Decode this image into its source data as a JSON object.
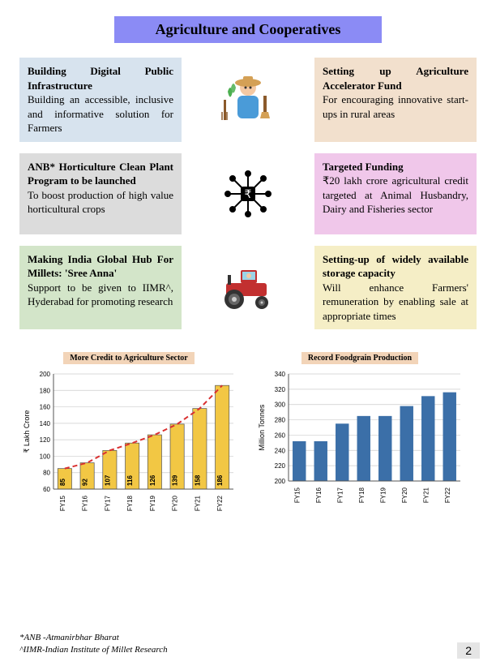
{
  "banner": {
    "text": "Agriculture and Cooperatives",
    "bg": "#8b8bf5"
  },
  "cards": [
    {
      "title": "Building Digital Public Infrastructure",
      "body": "Building an accessible, inclusive and informative solution for Farmers",
      "bg": "#d7e3ee"
    },
    {
      "title": "Setting up Agriculture Accelerator Fund",
      "body": "For encouraging innovative start-ups in rural areas",
      "bg": "#f2e0cd"
    },
    {
      "title": "ANB* Horticulture Clean Plant Program to be launched",
      "body": "To boost production of high value horticultural crops",
      "bg": "#dcdcdc"
    },
    {
      "title": "Targeted Funding",
      "body": "₹20 lakh crore agricultural credit targeted at Animal Husbandry, Dairy and Fisheries sector",
      "bg": "#f0c7ea"
    },
    {
      "title": "Making India Global Hub For Millets: 'Sree Anna'",
      "body": "Support to be given to IIMR^, Hyderabad for promoting research",
      "bg": "#d3e5c9"
    },
    {
      "title": "Setting-up of widely available storage capacity",
      "body": "Will enhance Farmers' remuneration by enabling sale at appropriate times",
      "bg": "#f5eec6"
    }
  ],
  "chart1": {
    "title": "More Credit to Agriculture Sector",
    "type": "bar-with-trend",
    "categories": [
      "FY15",
      "FY16",
      "FY17",
      "FY18",
      "FY19",
      "FY20",
      "FY21",
      "FY22"
    ],
    "values": [
      85,
      92,
      107,
      116,
      126,
      139,
      158,
      186
    ],
    "ylabel": "₹ Lakh Crore",
    "ylim": [
      60,
      200
    ],
    "ytick_step": 20,
    "bar_color": "#f2c744",
    "bar_border": "#555555",
    "trend_color": "#d93030",
    "grid_color": "#cccccc",
    "font_size": 8
  },
  "chart2": {
    "title": "Record Foodgrain Production",
    "type": "bar",
    "categories": [
      "FY15",
      "FY16",
      "FY17",
      "FY18",
      "FY19",
      "FY20",
      "FY21",
      "FY22"
    ],
    "values": [
      252,
      252,
      275,
      285,
      285,
      298,
      311,
      316
    ],
    "ylabel": "Million Tonnes",
    "ylim": [
      200,
      340
    ],
    "ytick_step": 20,
    "bar_color": "#3b6fa8",
    "grid_color": "#cccccc",
    "font_size": 8
  },
  "footnotes": {
    "line1": "*ANB -Atmanirbhar Bharat",
    "line2": "^IIMR-Indian Institute of Millet Research"
  },
  "page_number": "2"
}
